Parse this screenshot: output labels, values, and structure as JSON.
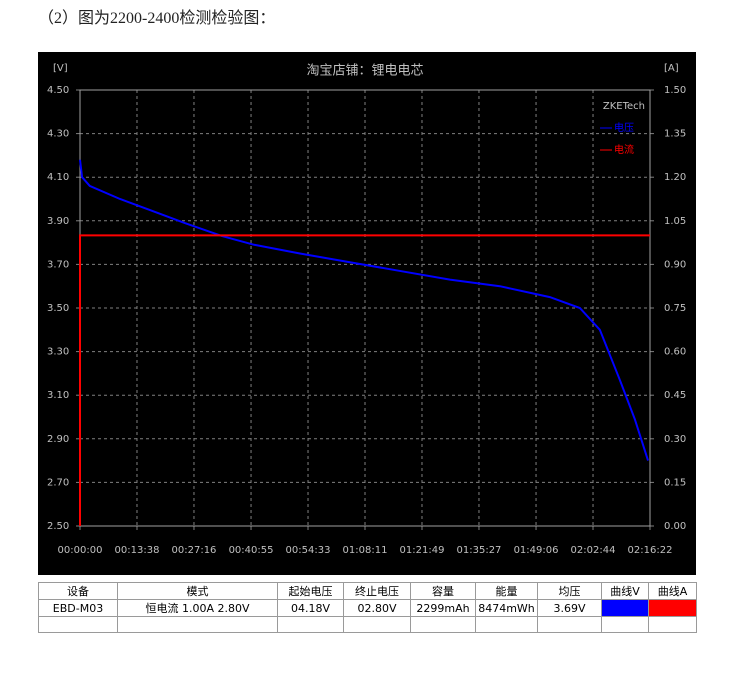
{
  "caption": "（2）图为2200-2400检测检验图：",
  "chart_data": {
    "type": "line",
    "title": "淘宝店铺：锂电电芯",
    "y_label": "[V]",
    "y2_label": "[A]",
    "annotation": "ZKETech",
    "xlim": [
      0,
      8182
    ],
    "xticks": [
      {
        "value": 0,
        "label": "00:00:00"
      },
      {
        "value": 818,
        "label": "00:13:38"
      },
      {
        "value": 1636,
        "label": "00:27:16"
      },
      {
        "value": 2455,
        "label": "00:40:55"
      },
      {
        "value": 3273,
        "label": "00:54:33"
      },
      {
        "value": 4091,
        "label": "01:08:11"
      },
      {
        "value": 4909,
        "label": "01:21:49"
      },
      {
        "value": 5727,
        "label": "01:35:27"
      },
      {
        "value": 6546,
        "label": "01:49:06"
      },
      {
        "value": 7364,
        "label": "02:02:44"
      },
      {
        "value": 8182,
        "label": "02:16:22"
      }
    ],
    "ylim": [
      2.5,
      4.5
    ],
    "yticks": [
      {
        "value": 2.5,
        "label": "2.50"
      },
      {
        "value": 2.7,
        "label": "2.70"
      },
      {
        "value": 2.9,
        "label": "2.90"
      },
      {
        "value": 3.1,
        "label": "3.10"
      },
      {
        "value": 3.3,
        "label": "3.30"
      },
      {
        "value": 3.5,
        "label": "3.50"
      },
      {
        "value": 3.7,
        "label": "3.70"
      },
      {
        "value": 3.9,
        "label": "3.90"
      },
      {
        "value": 4.1,
        "label": "4.10"
      },
      {
        "value": 4.3,
        "label": "4.30"
      },
      {
        "value": 4.5,
        "label": "4.50"
      }
    ],
    "y2lim": [
      0,
      1.5
    ],
    "y2ticks": [
      {
        "value": 0,
        "label": "0.00"
      },
      0.15,
      {
        "value": 0.3,
        "label": "0.30"
      },
      0.45,
      {
        "value": 0.6,
        "label": "0.60"
      },
      0.75,
      {
        "value": 0.9,
        "label": "0.90"
      },
      1.05,
      {
        "value": 1.2,
        "label": "1.20"
      },
      1.35,
      {
        "value": 1.5,
        "label": "1.50"
      }
    ],
    "grid": true,
    "legend": "upper right",
    "series": [
      {
        "name": "电压",
        "color": "#0000ff",
        "x": [
          0,
          30,
          140,
          574,
          1000,
          1500,
          2039,
          2500,
          3157,
          3874,
          4592,
          5310,
          6027,
          6745,
          7175,
          7462,
          7749,
          7964,
          8154
        ],
        "values": [
          4.18,
          4.1,
          4.06,
          4.0,
          3.95,
          3.89,
          3.83,
          3.79,
          3.75,
          3.71,
          3.67,
          3.63,
          3.6,
          3.55,
          3.5,
          3.4,
          3.17,
          2.99,
          2.8
        ]
      },
      {
        "name": "电流",
        "color": "#ff0000",
        "axis": "y2",
        "x": [
          0,
          0,
          8182
        ],
        "values": [
          0,
          1.0,
          1.0
        ]
      }
    ]
  },
  "table": {
    "header": [
      "设备",
      "模式",
      "起始电压",
      "终止电压",
      "容量",
      "能量",
      "均压",
      "曲线V",
      "曲线A"
    ],
    "rows": [
      [
        "EBD-M03",
        "恒电流 1.00A 2.80V",
        "04.18V",
        "02.80V",
        "2299mAh",
        "8474mWh",
        "3.69V"
      ]
    ]
  }
}
